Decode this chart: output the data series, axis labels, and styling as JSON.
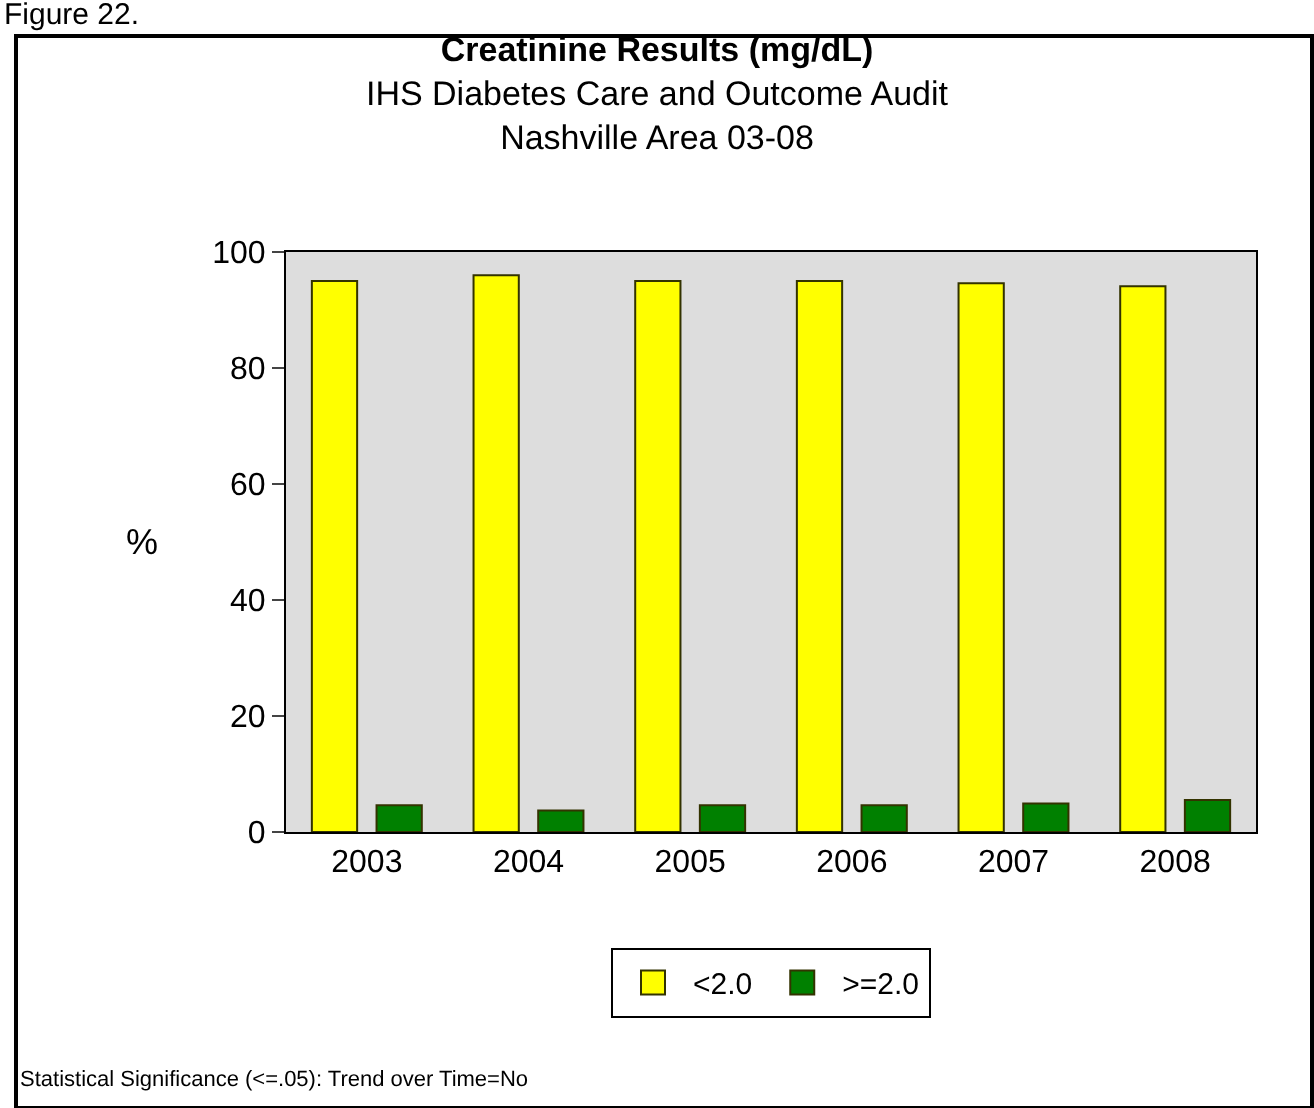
{
  "chart_data": {
    "type": "bar",
    "title": "Creatinine Results (mg/dL)",
    "subtitle": "IHS Diabetes Care and Outcome Audit\nNashville Area 03-08",
    "ylabel": "%",
    "categories": [
      "2003",
      "2004",
      "2005",
      "2006",
      "2007",
      "2008"
    ],
    "series": [
      {
        "name": "<2.0",
        "color": "#ffff00",
        "values": [
          95,
          96,
          95,
          95,
          94.6,
          94.1
        ]
      },
      {
        "name": ">=2.0",
        "color": "#008000",
        "values": [
          4.6,
          3.7,
          4.6,
          4.6,
          4.9,
          5.5
        ]
      }
    ],
    "ylim": [
      0,
      100
    ],
    "yticks": [
      0,
      20,
      40,
      60,
      80,
      100
    ],
    "grid": false,
    "legend": "bottom",
    "annotations": [
      "Figure 22.",
      "Statistical Significance (<=.05): Trend over Time=No"
    ]
  }
}
